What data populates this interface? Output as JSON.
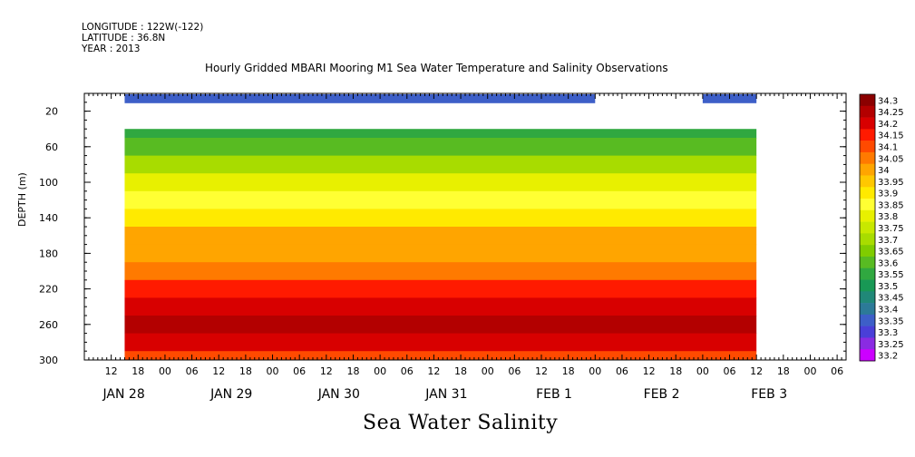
{
  "header": {
    "longitude": "LONGITUDE : 122W(-122)",
    "latitude": "LATITUDE : 36.8N",
    "year": "YEAR : 2013",
    "title": "Hourly Gridded MBARI Mooring M1 Sea Water Temperature and Salinity Observations"
  },
  "footer_label": "Sea Water Salinity",
  "chart_data": {
    "type": "heatmap",
    "title": "Hourly Gridded MBARI Mooring M1 Sea Water Temperature and Salinity Observations",
    "xlabel": "",
    "ylabel": "DEPTH (m)",
    "ylim": [
      300,
      0
    ],
    "yticks": [
      20,
      60,
      100,
      140,
      180,
      220,
      260,
      300
    ],
    "x_date_labels": [
      "JAN 28",
      "JAN 29",
      "JAN 30",
      "JAN 31",
      "FEB  1",
      "FEB  2",
      "FEB  3"
    ],
    "x_hour_ticks": [
      "12",
      "18",
      "00",
      "06",
      "12",
      "18",
      "00",
      "06",
      "12",
      "18",
      "00",
      "06",
      "12",
      "18",
      "00",
      "06",
      "12",
      "18",
      "00",
      "06",
      "12",
      "18",
      "00",
      "06",
      "12",
      "18",
      "00",
      "06"
    ],
    "data_start": "2013-01-28T15:00",
    "data_end": "2013-02-03T08:00",
    "depths": [
      10,
      40,
      60,
      80,
      100,
      120,
      140,
      160,
      180,
      200,
      220,
      240,
      260,
      280,
      300
    ],
    "times": [
      "JAN 28 15h",
      "JAN 29 12h",
      "JAN 30 12h",
      "JAN 31 06h",
      "JAN 31 18h",
      "FEB 1 12h",
      "FEB 2 00h",
      "FEB 2 12h",
      "FEB 3 06h"
    ],
    "surface_value": 33.35,
    "surface_gap": [
      "FEB 2 00h",
      "FEB 3 00h"
    ],
    "salinity_profile": {
      "40": 33.55,
      "60": 33.62,
      "80": 33.72,
      "100": 33.8,
      "120": 33.87,
      "140": 33.93,
      "160": 34.0,
      "180": 34.02,
      "200": 34.08,
      "220": 34.15,
      "240": 34.22,
      "260": 34.27,
      "280": 34.2,
      "300": 34.1
    },
    "colorbar": {
      "levels": [
        "34.3",
        "34.25",
        "34.2",
        "34.15",
        "34.1",
        "34.05",
        "34",
        "33.95",
        "33.9",
        "33.85",
        "33.8",
        "33.75",
        "33.7",
        "33.65",
        "33.6",
        "33.55",
        "33.5",
        "33.45",
        "33.4",
        "33.35",
        "33.3",
        "33.25",
        "33.2"
      ],
      "colors": [
        "#8b0000",
        "#b30000",
        "#d80000",
        "#ff1a00",
        "#ff4a00",
        "#ff7a00",
        "#ffa500",
        "#ffc800",
        "#ffea00",
        "#ffff33",
        "#e8f000",
        "#c8e800",
        "#a8dc00",
        "#80cc00",
        "#58bb22",
        "#30a840",
        "#189855",
        "#208878",
        "#2c7a98",
        "#3d5fc8",
        "#4a3fd8",
        "#8a2be2",
        "#cc00ff"
      ]
    }
  }
}
